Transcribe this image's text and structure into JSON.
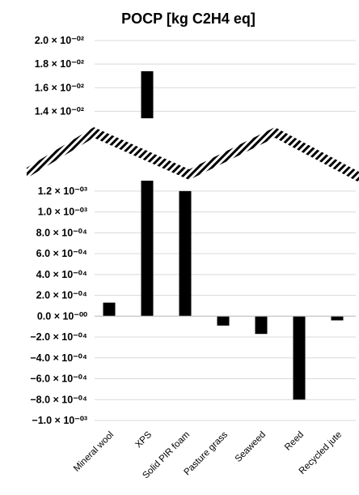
{
  "chart_data": {
    "type": "bar",
    "title": "POCP [kg C2H4 eq]",
    "xlabel": "",
    "ylabel": "",
    "grid": true,
    "axis_break": true,
    "categories": [
      "Mineral wool",
      "XPS",
      "Solid PIR foam",
      "Pasture grass",
      "Seaweed",
      "Reed",
      "Recycled jute"
    ],
    "values": [
      0.00013,
      0.0174,
      0.0012,
      -9e-05,
      -0.00017,
      -0.0008,
      -4e-05
    ],
    "y_upper": {
      "ticks": [
        0.014,
        0.016,
        0.018,
        0.02
      ],
      "tick_labels": [
        "1.4 × 10⁻⁰²",
        "1.6 × 10⁻⁰²",
        "1.8 × 10⁻⁰²",
        "2.0 × 10⁻⁰²"
      ],
      "ylim": [
        0.013,
        0.02
      ]
    },
    "y_lower": {
      "ticks": [
        -0.001,
        -0.0008,
        -0.0006,
        -0.0004,
        -0.0002,
        0,
        0.0002,
        0.0004,
        0.0006,
        0.0008,
        0.001,
        0.0012
      ],
      "tick_labels": [
        "−1.0 × 10⁻⁰³",
        "−8.0 × 10⁻⁰⁴",
        "−6.0 × 10⁻⁰⁴",
        "−4.0 × 10⁻⁰⁴",
        "−2.0 × 10⁻⁰⁴",
        "0.0 × 10⁻⁰⁰",
        "2.0 × 10⁻⁰⁴",
        "4.0 × 10⁻⁰⁴",
        "6.0 × 10⁻⁰⁴",
        "8.0 × 10⁻⁰⁴",
        "1.0 × 10⁻⁰³",
        "1.2 × 10⁻⁰³"
      ],
      "ylim": [
        -0.001,
        0.0013
      ]
    },
    "colors": {
      "bar": "#000000",
      "grid": "#d9d9d9",
      "break_stripe": "#000000"
    }
  }
}
